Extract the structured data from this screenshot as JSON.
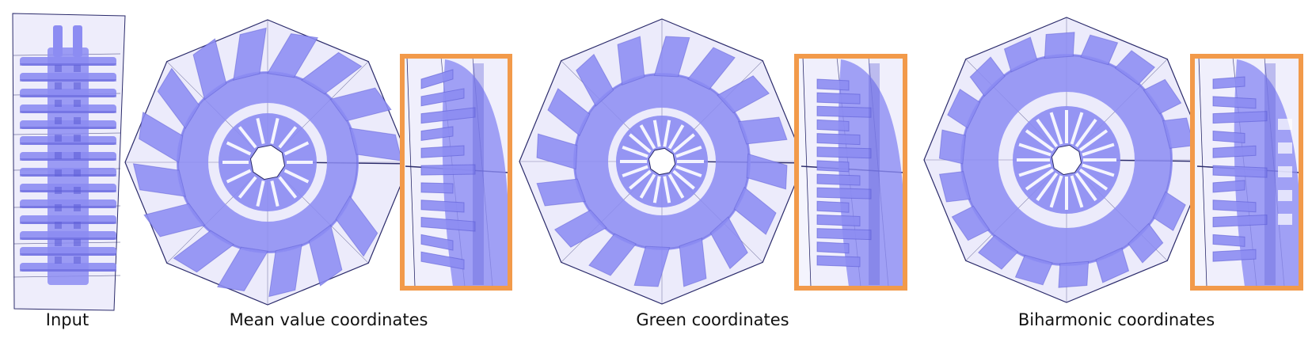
{
  "figure": {
    "captions": {
      "input": "Input",
      "mvc": "Mean value coordinates",
      "green": "Green coordinates",
      "biharmonic": "Biharmonic coordinates"
    },
    "colors": {
      "cage_fill": "#ecebfb",
      "cage_stroke": "#2b2b6b",
      "shape_fill": "#8c8cf2",
      "shape_dark": "#5d5dd6",
      "highlight_frame": "#f29a4a",
      "background": "#ffffff"
    },
    "panels": [
      {
        "name": "input",
        "kind": "straight-cage"
      },
      {
        "name": "mvc",
        "kind": "radial-deformation"
      },
      {
        "name": "mvc-zoom",
        "kind": "zoom-inset"
      },
      {
        "name": "green",
        "kind": "radial-deformation"
      },
      {
        "name": "green-zoom",
        "kind": "zoom-inset"
      },
      {
        "name": "biharmonic",
        "kind": "radial-deformation"
      },
      {
        "name": "biharmonic-zoom",
        "kind": "zoom-inset"
      }
    ]
  }
}
